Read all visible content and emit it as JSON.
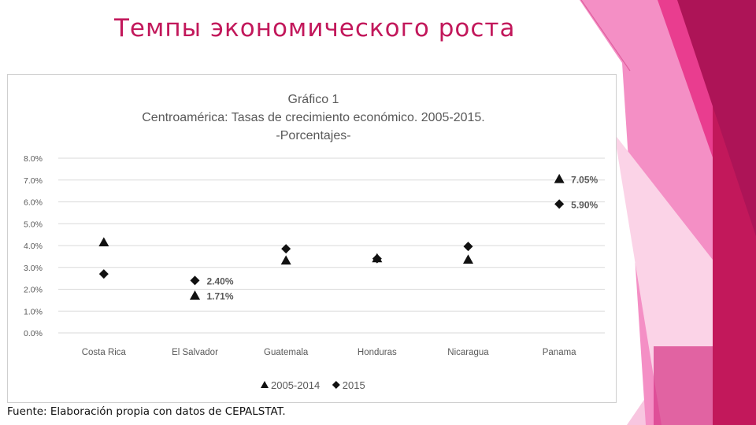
{
  "slide": {
    "title": "Темпы экономического роста",
    "source": "Fuente: Elaboración propia con datos de CEPALSTAT.",
    "accent_color": "#c2185b"
  },
  "chart_data": {
    "type": "scatter",
    "title": "Gráfico 1",
    "subtitle": "Centroamérica: Tasas de crecimiento económico. 2005-2015.",
    "subtitle2": "-Porcentajes-",
    "categories": [
      "Costa Rica",
      "El Salvador",
      "Guatemala",
      "Honduras",
      "Nicaragua",
      "Panama"
    ],
    "y_ticks": [
      "0.0%",
      "1.0%",
      "2.0%",
      "3.0%",
      "4.0%",
      "5.0%",
      "6.0%",
      "7.0%",
      "8.0%"
    ],
    "ylim": [
      0,
      8
    ],
    "grid": true,
    "legend_position": "bottom",
    "series": [
      {
        "name": "2005-2014",
        "marker": "triangle",
        "color": "#111111",
        "values": [
          4.15,
          1.71,
          3.32,
          3.42,
          3.36,
          7.05
        ],
        "labels": [
          "",
          "1.71%",
          "",
          "",
          "",
          "7.05%"
        ]
      },
      {
        "name": "2015",
        "marker": "diamond",
        "color": "#111111",
        "values": [
          2.7,
          2.4,
          3.85,
          3.4,
          3.96,
          5.9
        ],
        "labels": [
          "",
          "2.40%",
          "",
          "",
          "",
          "5.90%"
        ]
      }
    ]
  }
}
